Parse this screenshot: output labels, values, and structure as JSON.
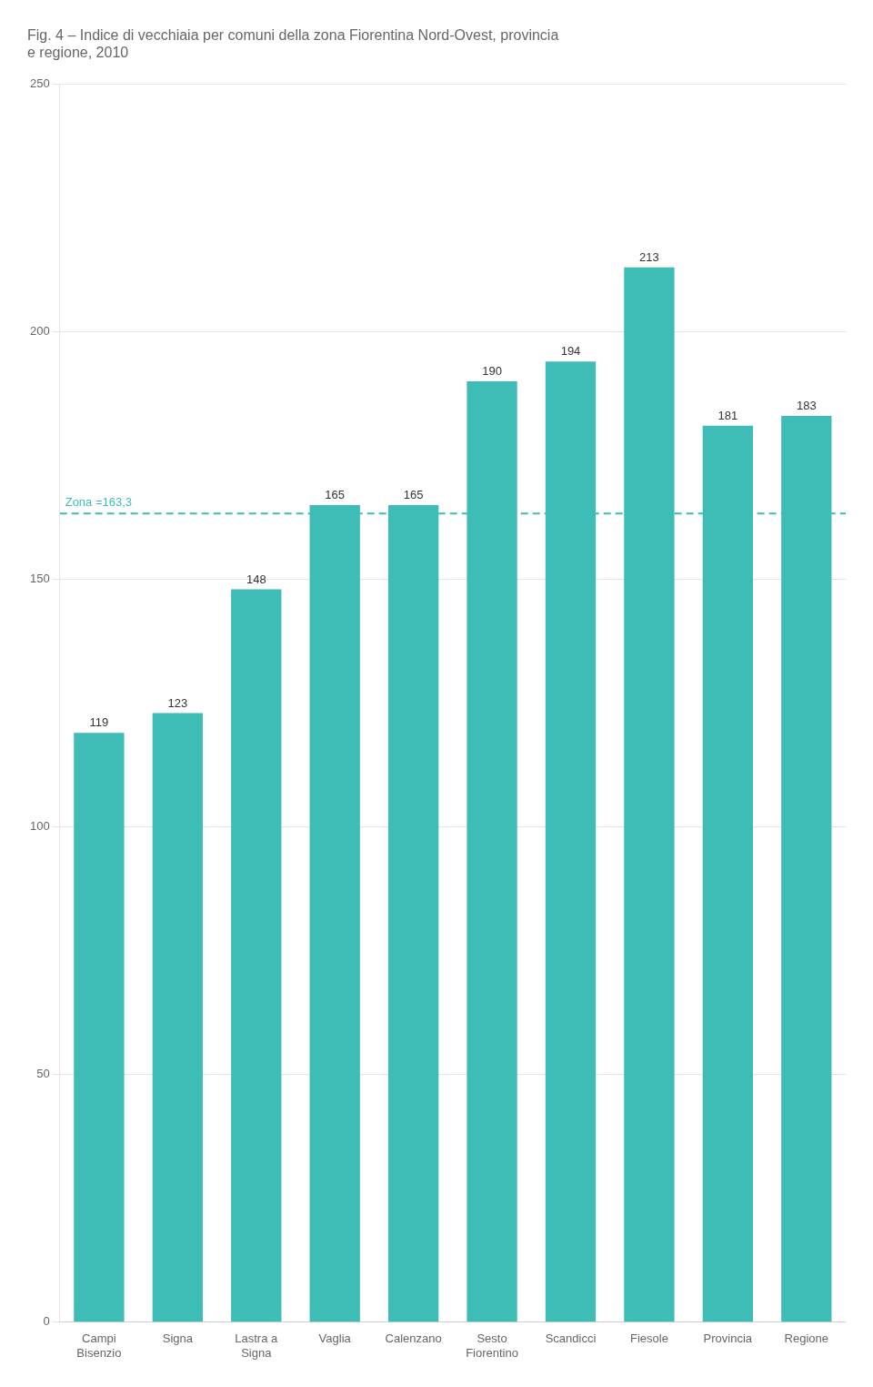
{
  "chart_data": {
    "type": "bar",
    "title": [
      "Fig. 4 – Indice di vecchiaia per comuni della zona Fiorentina Nord-Ovest, provincia",
      "e regione, 2010"
    ],
    "categories": [
      "Campi\nBisenzio",
      "Signa",
      "Lastra a\nSigna",
      "Vaglia",
      "Calenzano",
      "Sesto\nFiorentino",
      "Scandicci",
      "Fiesole",
      "Provincia",
      "Regione"
    ],
    "values": [
      119,
      123,
      148,
      165,
      165,
      190,
      194,
      213,
      181,
      183
    ],
    "color": "#3dbdb5",
    "ylim": [
      0,
      250
    ],
    "yticks": [
      0,
      50,
      100,
      150,
      200,
      250
    ],
    "grid": true,
    "data_labels": true,
    "annotations": [
      {
        "type": "hline",
        "value": 163.3,
        "label": "Zona =163,3",
        "color": "#3dbdb5",
        "line_style": "dashed"
      }
    ]
  }
}
